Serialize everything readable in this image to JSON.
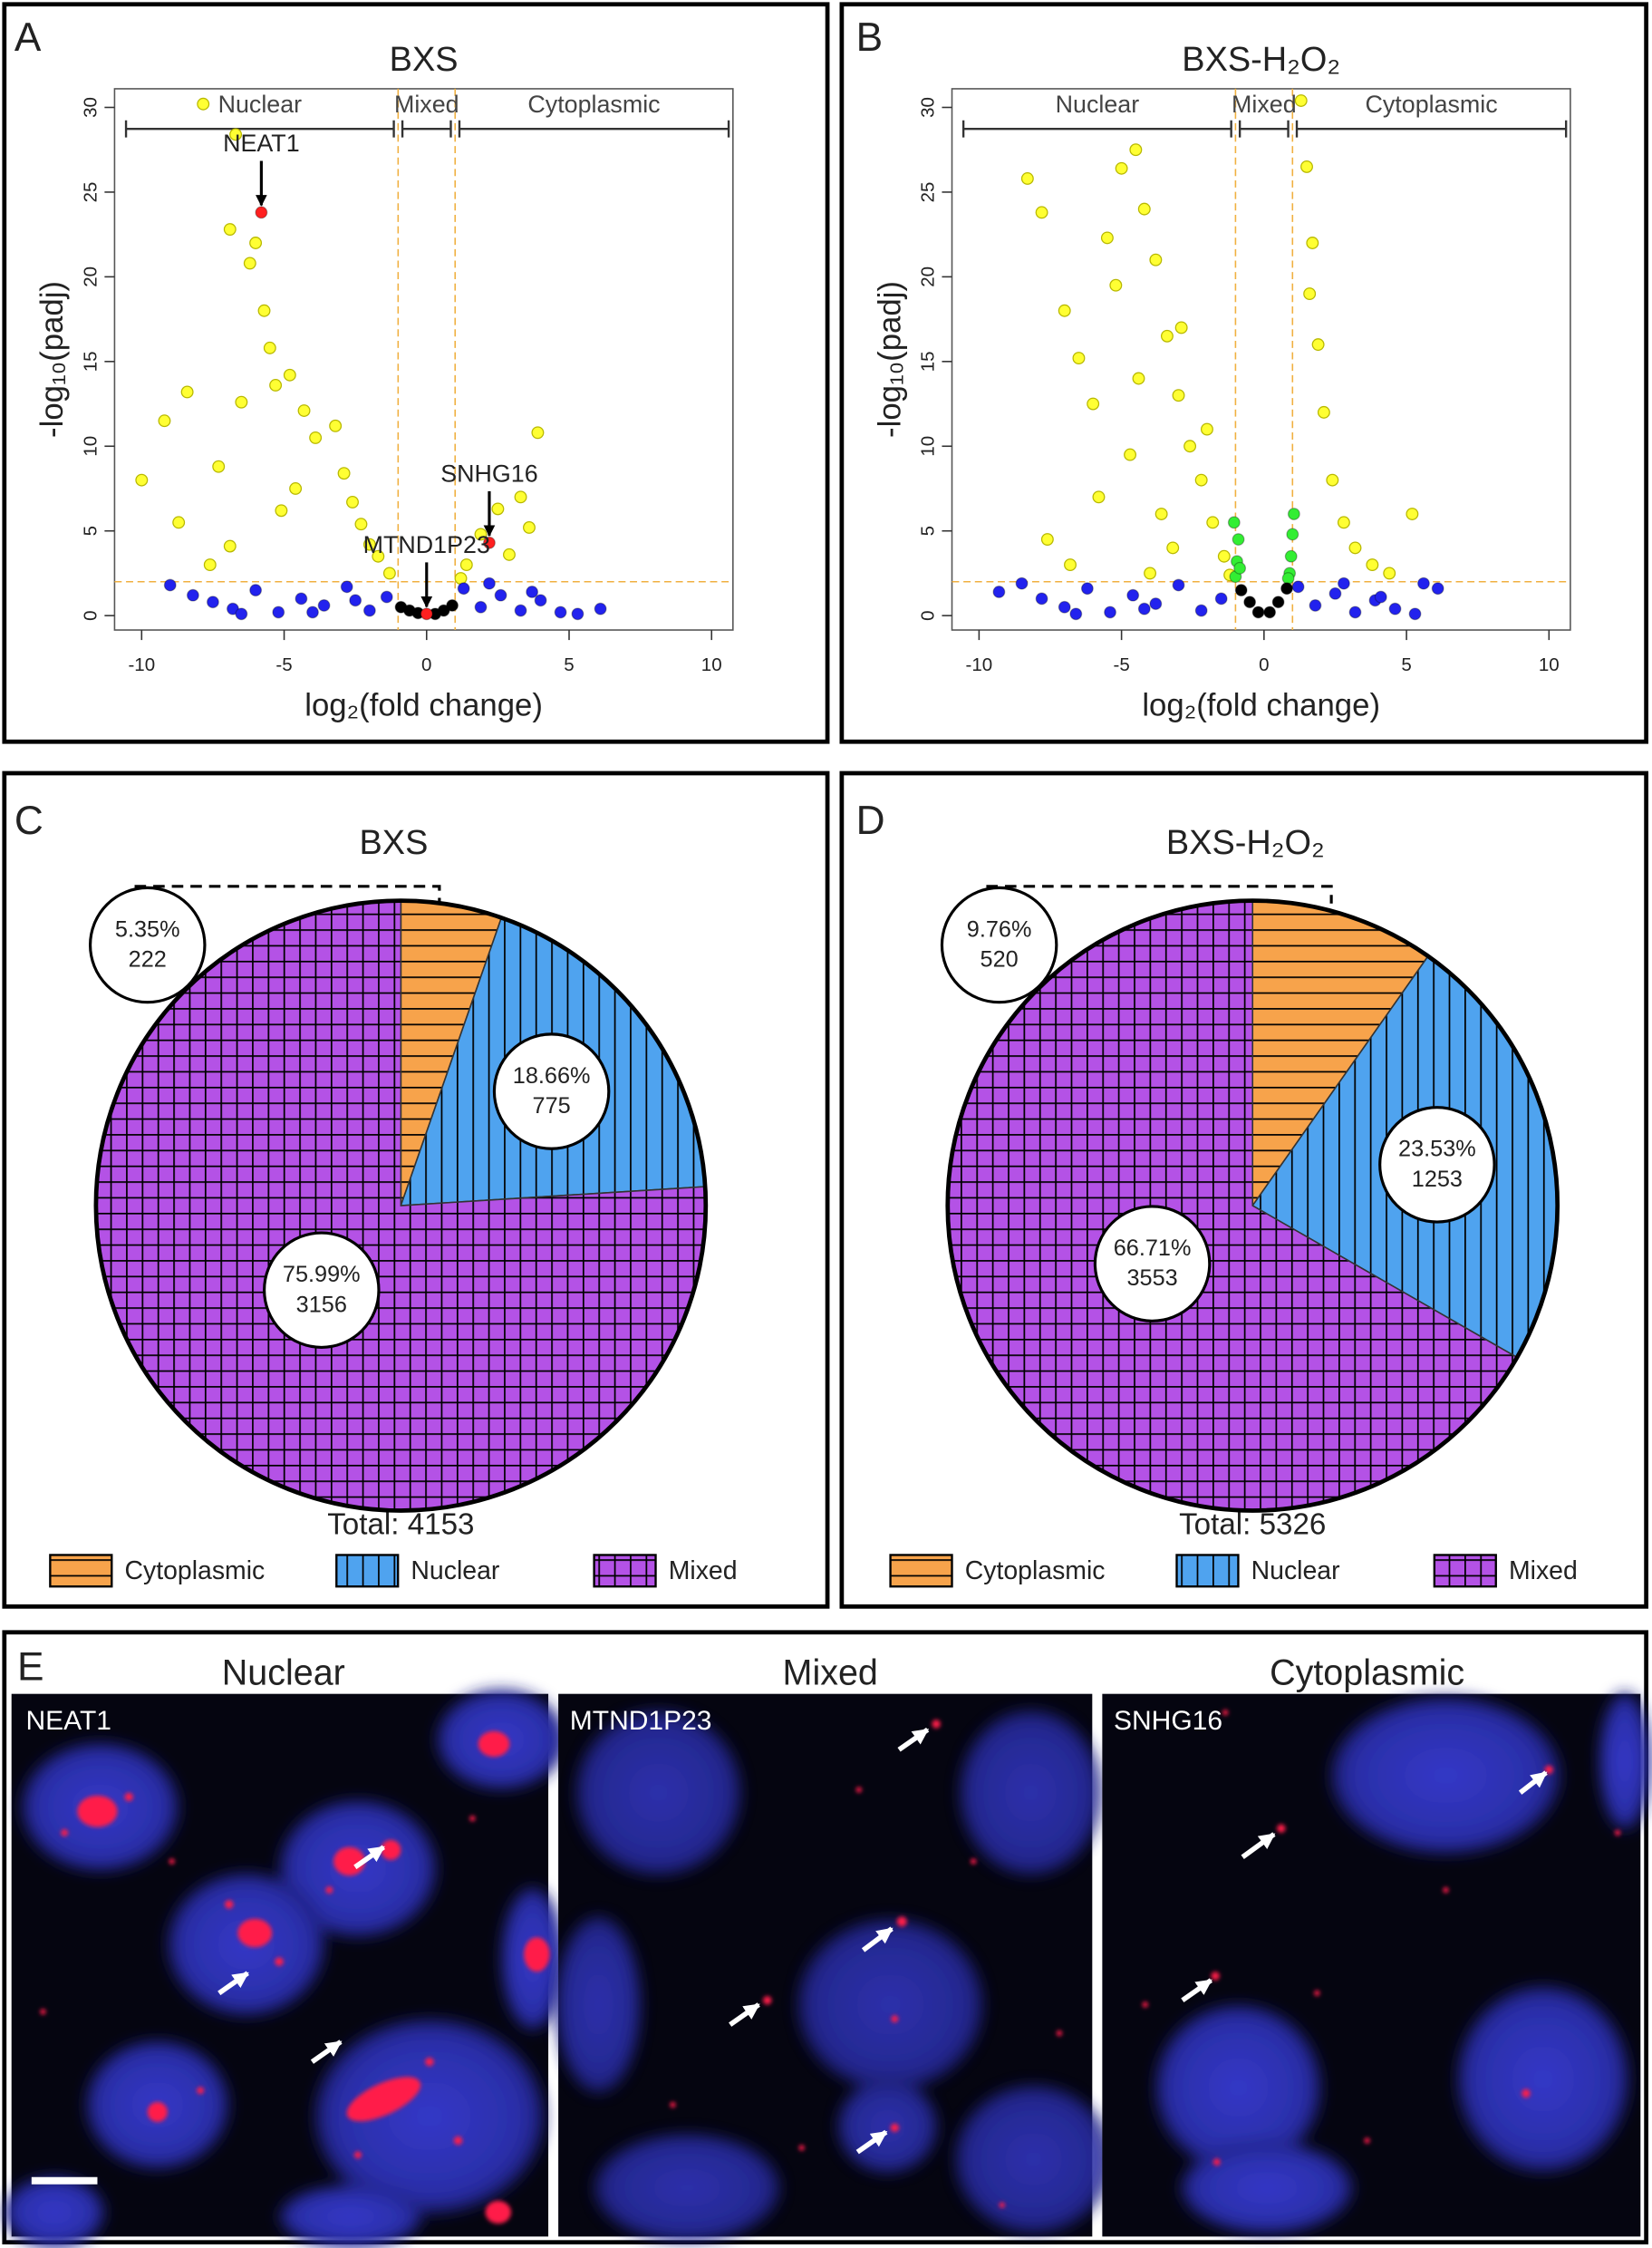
{
  "panel_labels": [
    "A",
    "B",
    "C",
    "D",
    "E"
  ],
  "chart_data": [
    {
      "type": "scatter",
      "title": "BXS",
      "xlabel": "log₂(fold change)",
      "ylabel": "-log₁₀(padj)",
      "xlim": [
        -10.95,
        10.75
      ],
      "ylim": [
        -0.85,
        31.1
      ],
      "xticks": [
        -10,
        -5,
        0,
        5,
        10
      ],
      "yticks": [
        0,
        5,
        10,
        15,
        20,
        25,
        30
      ],
      "regions": [
        "Nuclear",
        "Mixed",
        "Cytoplasmic"
      ],
      "x_thresholds": [
        -1,
        1
      ],
      "y_threshold": 2,
      "series": [
        {
          "color": "#ffff33",
          "x": [
            -7.84,
            -6.7,
            -6.9,
            -6.0,
            -6.2,
            -5.7,
            -5.5,
            -8.4,
            -9.2,
            -10.0,
            -8.7,
            -7.3,
            -6.5,
            -5.3,
            -4.8,
            -4.3,
            -3.9,
            -3.2,
            -2.9,
            -2.6,
            -2.3,
            -2.0,
            -1.7,
            -1.3,
            -4.6,
            -5.1,
            -6.9,
            -7.6,
            1.4,
            1.9,
            2.5,
            3.3,
            3.9,
            2.9,
            1.2,
            3.6
          ],
          "values": [
            30.2,
            28.4,
            22.8,
            22.0,
            20.8,
            18.0,
            15.8,
            13.2,
            11.5,
            8.0,
            5.5,
            8.8,
            12.6,
            13.6,
            14.2,
            12.1,
            10.5,
            11.2,
            8.4,
            6.7,
            5.4,
            4.2,
            3.5,
            2.5,
            7.5,
            6.2,
            4.1,
            3.0,
            3.0,
            4.8,
            6.3,
            7.0,
            10.8,
            3.6,
            2.2,
            5.2
          ]
        },
        {
          "color": "#2222ee",
          "x": [
            -9.0,
            -8.2,
            -7.5,
            -6.8,
            -6.0,
            -5.2,
            -4.4,
            -3.6,
            -2.8,
            -2.0,
            -1.4,
            -6.5,
            -4.0,
            -2.5,
            1.3,
            1.9,
            2.6,
            3.3,
            4.0,
            4.7,
            5.3,
            6.1,
            2.2,
            3.7
          ],
          "values": [
            1.8,
            1.2,
            0.8,
            0.4,
            1.5,
            0.2,
            1.0,
            0.6,
            1.7,
            0.3,
            1.1,
            0.1,
            0.2,
            0.9,
            1.6,
            0.5,
            1.2,
            0.3,
            0.9,
            0.2,
            0.1,
            0.4,
            1.9,
            1.4
          ]
        },
        {
          "color": "#000000",
          "x": [
            -0.9,
            -0.6,
            -0.3,
            0.3,
            0.6,
            0.9
          ],
          "values": [
            0.5,
            0.3,
            0.15,
            0.1,
            0.3,
            0.6
          ]
        },
        {
          "color": "#ff2020",
          "x": [
            -5.8,
            2.2,
            0.0
          ],
          "values": [
            23.8,
            4.3,
            0.1
          ],
          "labels": [
            "NEAT1",
            "SNHG16",
            "MTND1P23"
          ]
        }
      ]
    },
    {
      "type": "scatter",
      "title": "BXS-H₂O₂",
      "xlabel": "log₂(fold change)",
      "ylabel": "-log₁₀(padj)",
      "xlim": [
        -10.95,
        10.75
      ],
      "ylim": [
        -0.85,
        31.1
      ],
      "xticks": [
        -10,
        -5,
        0,
        5,
        10
      ],
      "yticks": [
        0,
        5,
        10,
        15,
        20,
        25,
        30
      ],
      "regions": [
        "Nuclear",
        "Mixed",
        "Cytoplasmic"
      ],
      "x_thresholds": [
        -1,
        1
      ],
      "y_threshold": 2,
      "series": [
        {
          "color": "#ffff33",
          "x": [
            -8.3,
            -7.8,
            -7.0,
            -6.5,
            -6.0,
            -5.5,
            -5.0,
            -4.5,
            -4.2,
            -3.8,
            -3.4,
            -3.0,
            -2.6,
            -2.2,
            -1.8,
            -1.4,
            -5.2,
            -4.7,
            -3.6,
            -3.2,
            -6.8,
            -7.6,
            -4.0,
            -2.9,
            -5.8,
            -4.4,
            -2.0,
            -1.2,
            1.3,
            1.5,
            1.7,
            1.9,
            2.1,
            2.4,
            2.8,
            3.2,
            3.8,
            4.4,
            5.2,
            1.6
          ],
          "values": [
            25.8,
            23.8,
            18.0,
            15.2,
            12.5,
            22.3,
            26.4,
            27.5,
            24.0,
            21.0,
            16.5,
            13.0,
            10.0,
            8.0,
            5.5,
            3.5,
            19.5,
            9.5,
            6.0,
            4.0,
            3.0,
            4.5,
            2.5,
            17.0,
            7.0,
            14.0,
            11.0,
            2.4,
            30.4,
            26.5,
            22.0,
            16.0,
            12.0,
            8.0,
            5.5,
            4.0,
            3.0,
            2.5,
            6.0,
            19.0
          ]
        },
        {
          "color": "#33ee33",
          "x": [
            -1.0,
            -0.95,
            -0.9,
            -1.05,
            -0.85,
            0.9,
            0.95,
            1.0,
            1.05,
            0.85
          ],
          "values": [
            2.3,
            3.2,
            4.5,
            5.5,
            2.8,
            2.5,
            3.5,
            4.8,
            6.0,
            2.2
          ]
        },
        {
          "color": "#2222ee",
          "x": [
            -8.5,
            -7.8,
            -7.0,
            -6.2,
            -5.4,
            -4.6,
            -3.8,
            -3.0,
            -2.2,
            -1.5,
            -6.6,
            -4.2,
            1.2,
            1.8,
            2.5,
            3.2,
            3.9,
            4.6,
            5.3,
            6.1,
            2.8,
            4.1,
            -9.3,
            5.6
          ],
          "values": [
            1.9,
            1.0,
            0.5,
            1.6,
            0.2,
            1.2,
            0.7,
            1.8,
            0.3,
            1.0,
            0.1,
            0.4,
            1.7,
            0.6,
            1.3,
            0.2,
            0.9,
            0.4,
            0.1,
            1.6,
            1.9,
            1.1,
            1.4,
            1.9
          ]
        },
        {
          "color": "#000000",
          "x": [
            -0.8,
            -0.5,
            -0.2,
            0.2,
            0.5,
            0.8
          ],
          "values": [
            1.5,
            0.8,
            0.2,
            0.2,
            0.8,
            1.6
          ]
        }
      ]
    },
    {
      "type": "pie",
      "title": "BXS",
      "categories": [
        "Cytoplasmic",
        "Nuclear",
        "Mixed"
      ],
      "values": [
        5.35,
        18.66,
        75.99
      ],
      "value_labels": [
        "5.35%",
        "18.66%",
        "75.99%"
      ],
      "counts": [
        222,
        775,
        3156
      ],
      "total_label": "Total: 4153",
      "colors": [
        "#f7a34b",
        "#4fa3ef",
        "#b452e6"
      ],
      "patterns": [
        "horizontal",
        "vertical",
        "grid"
      ]
    },
    {
      "type": "pie",
      "title": "BXS-H₂O₂",
      "categories": [
        "Cytoplasmic",
        "Nuclear",
        "Mixed"
      ],
      "values": [
        9.76,
        23.53,
        66.71
      ],
      "value_labels": [
        "9.76%",
        "23.53%",
        "66.71%"
      ],
      "counts": [
        520,
        1253,
        3553
      ],
      "total_label": "Total: 5326",
      "colors": [
        "#f7a34b",
        "#4fa3ef",
        "#b452e6"
      ],
      "patterns": [
        "horizontal",
        "vertical",
        "grid"
      ]
    }
  ],
  "micrographs": {
    "titles": [
      "Nuclear",
      "Mixed",
      "Cytoplasmic"
    ],
    "labels": [
      "NEAT1",
      "MTND1P23",
      "SNHG16"
    ]
  }
}
